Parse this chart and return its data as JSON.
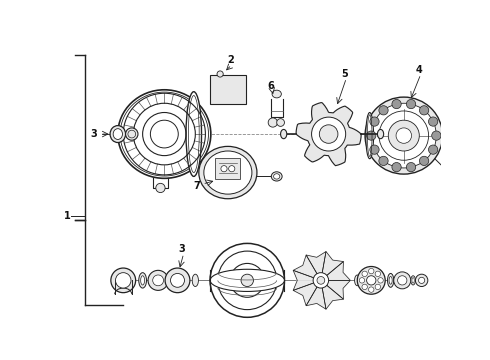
{
  "bg_color": "#ffffff",
  "line_color": "#222222",
  "text_color": "#111111",
  "gray_fill": "#e8e8e8",
  "dark_gray": "#555555",
  "mid_gray": "#999999"
}
